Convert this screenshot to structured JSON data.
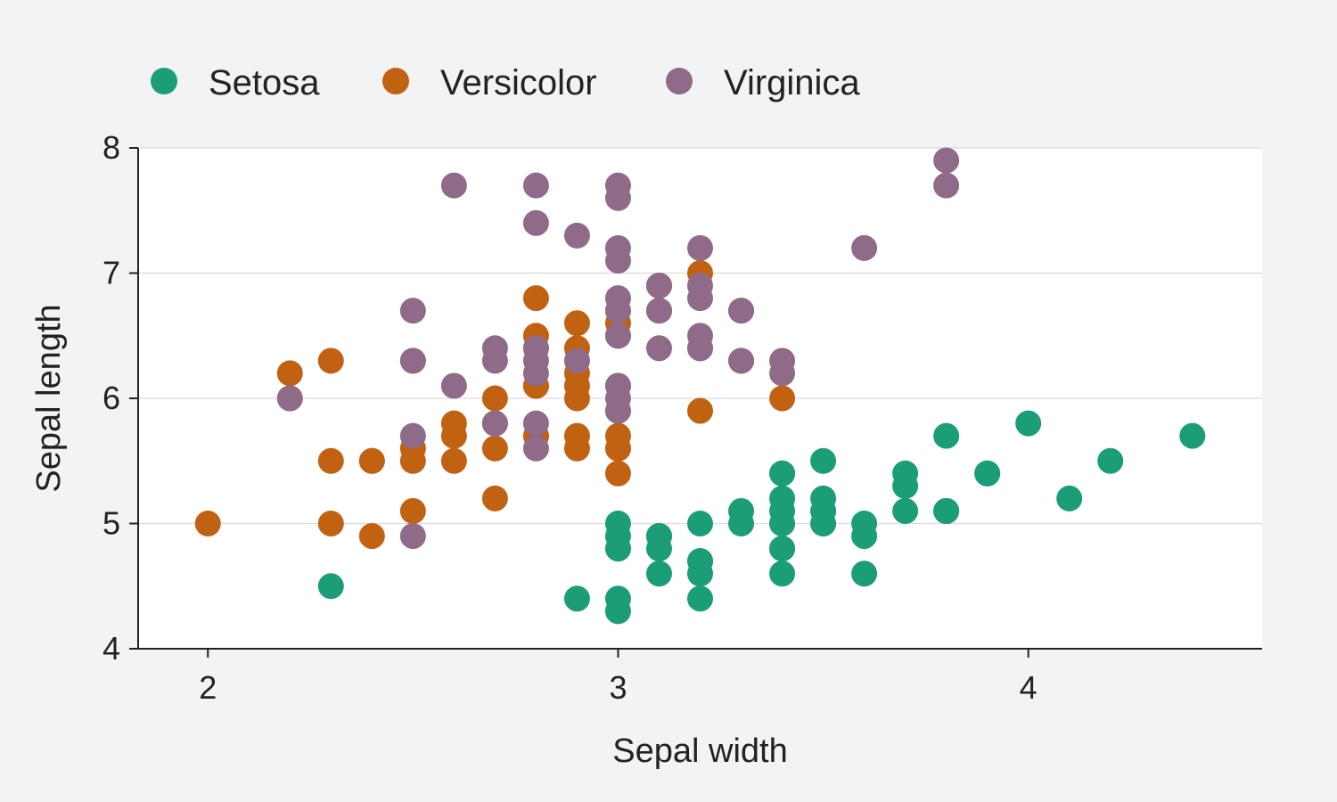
{
  "colors": {
    "background": "#f2f3f5",
    "plot_background": "#ffffff",
    "grid": "#d9d9d9",
    "axis": "#222222",
    "Setosa": "#1b9e77",
    "Versicolor": "#c16213",
    "Virginica": "#8f6b89"
  },
  "chart_data": {
    "type": "scatter",
    "xlabel": "Sepal width",
    "ylabel": "Sepal length",
    "xlim": [
      1.83,
      4.57
    ],
    "ylim": [
      4,
      8
    ],
    "xticks": [
      2,
      3,
      4
    ],
    "yticks": [
      4,
      5,
      6,
      7,
      8
    ],
    "grid": "horizontal",
    "legend": "top",
    "series": [
      {
        "name": "Setosa",
        "points": [
          [
            3.5,
            5.1
          ],
          [
            3.0,
            4.9
          ],
          [
            3.2,
            4.7
          ],
          [
            3.1,
            4.6
          ],
          [
            3.6,
            5.0
          ],
          [
            3.9,
            5.4
          ],
          [
            3.4,
            4.6
          ],
          [
            3.4,
            5.0
          ],
          [
            2.9,
            4.4
          ],
          [
            3.1,
            4.9
          ],
          [
            3.7,
            5.4
          ],
          [
            3.4,
            4.8
          ],
          [
            3.0,
            4.8
          ],
          [
            3.0,
            4.3
          ],
          [
            4.0,
            5.8
          ],
          [
            4.4,
            5.7
          ],
          [
            3.9,
            5.4
          ],
          [
            3.5,
            5.1
          ],
          [
            3.8,
            5.7
          ],
          [
            3.8,
            5.1
          ],
          [
            3.4,
            5.4
          ],
          [
            3.7,
            5.1
          ],
          [
            3.6,
            4.6
          ],
          [
            3.3,
            5.1
          ],
          [
            3.4,
            4.8
          ],
          [
            3.0,
            5.0
          ],
          [
            3.4,
            5.0
          ],
          [
            3.5,
            5.2
          ],
          [
            3.4,
            5.2
          ],
          [
            3.2,
            4.7
          ],
          [
            3.1,
            4.8
          ],
          [
            3.4,
            5.4
          ],
          [
            4.1,
            5.2
          ],
          [
            4.2,
            5.5
          ],
          [
            3.1,
            4.9
          ],
          [
            3.2,
            5.0
          ],
          [
            3.5,
            5.5
          ],
          [
            3.6,
            4.9
          ],
          [
            3.0,
            4.4
          ],
          [
            3.4,
            5.1
          ],
          [
            3.5,
            5.0
          ],
          [
            2.3,
            4.5
          ],
          [
            3.2,
            4.4
          ],
          [
            3.5,
            5.0
          ],
          [
            3.8,
            5.1
          ],
          [
            3.0,
            4.8
          ],
          [
            3.8,
            5.1
          ],
          [
            3.2,
            4.6
          ],
          [
            3.7,
            5.3
          ],
          [
            3.3,
            5.0
          ]
        ]
      },
      {
        "name": "Versicolor",
        "points": [
          [
            3.2,
            7.0
          ],
          [
            3.2,
            6.4
          ],
          [
            3.1,
            6.9
          ],
          [
            2.3,
            5.5
          ],
          [
            2.8,
            6.5
          ],
          [
            2.8,
            5.7
          ],
          [
            3.3,
            6.3
          ],
          [
            2.4,
            4.9
          ],
          [
            2.9,
            6.6
          ],
          [
            2.7,
            5.2
          ],
          [
            2.0,
            5.0
          ],
          [
            3.0,
            5.9
          ],
          [
            2.2,
            6.0
          ],
          [
            2.9,
            6.1
          ],
          [
            2.9,
            5.6
          ],
          [
            3.1,
            6.7
          ],
          [
            3.0,
            5.6
          ],
          [
            2.7,
            5.8
          ],
          [
            2.2,
            6.2
          ],
          [
            2.5,
            5.6
          ],
          [
            3.2,
            5.9
          ],
          [
            2.8,
            6.1
          ],
          [
            2.5,
            6.3
          ],
          [
            2.8,
            6.1
          ],
          [
            2.9,
            6.4
          ],
          [
            3.0,
            6.6
          ],
          [
            2.8,
            6.8
          ],
          [
            3.0,
            6.7
          ],
          [
            2.9,
            6.0
          ],
          [
            2.6,
            5.7
          ],
          [
            2.4,
            5.5
          ],
          [
            2.4,
            5.5
          ],
          [
            2.7,
            5.8
          ],
          [
            2.7,
            6.0
          ],
          [
            3.0,
            5.4
          ],
          [
            3.4,
            6.0
          ],
          [
            3.1,
            6.7
          ],
          [
            2.3,
            6.3
          ],
          [
            3.0,
            5.6
          ],
          [
            2.5,
            5.5
          ],
          [
            2.6,
            5.5
          ],
          [
            3.0,
            6.1
          ],
          [
            2.6,
            5.8
          ],
          [
            2.3,
            5.0
          ],
          [
            2.7,
            5.6
          ],
          [
            3.0,
            5.7
          ],
          [
            2.9,
            5.7
          ],
          [
            2.9,
            6.2
          ],
          [
            2.5,
            5.1
          ],
          [
            2.8,
            5.7
          ]
        ]
      },
      {
        "name": "Virginica",
        "points": [
          [
            3.3,
            6.3
          ],
          [
            2.7,
            5.8
          ],
          [
            3.0,
            7.1
          ],
          [
            2.9,
            6.3
          ],
          [
            3.0,
            6.5
          ],
          [
            3.0,
            7.6
          ],
          [
            2.5,
            4.9
          ],
          [
            2.9,
            7.3
          ],
          [
            2.5,
            6.7
          ],
          [
            3.6,
            7.2
          ],
          [
            3.2,
            6.5
          ],
          [
            2.7,
            6.4
          ],
          [
            3.0,
            6.8
          ],
          [
            2.5,
            5.7
          ],
          [
            2.8,
            5.8
          ],
          [
            3.2,
            6.4
          ],
          [
            3.0,
            6.5
          ],
          [
            3.8,
            7.7
          ],
          [
            2.6,
            7.7
          ],
          [
            2.2,
            6.0
          ],
          [
            3.2,
            6.9
          ],
          [
            2.8,
            5.6
          ],
          [
            2.8,
            7.7
          ],
          [
            2.7,
            6.3
          ],
          [
            3.3,
            6.7
          ],
          [
            3.2,
            7.2
          ],
          [
            2.8,
            6.2
          ],
          [
            3.0,
            6.1
          ],
          [
            2.8,
            6.4
          ],
          [
            3.0,
            7.2
          ],
          [
            2.8,
            7.4
          ],
          [
            3.8,
            7.9
          ],
          [
            2.8,
            6.4
          ],
          [
            2.8,
            6.3
          ],
          [
            2.6,
            6.1
          ],
          [
            3.0,
            7.7
          ],
          [
            3.4,
            6.3
          ],
          [
            3.1,
            6.4
          ],
          [
            3.0,
            6.0
          ],
          [
            3.1,
            6.9
          ],
          [
            3.1,
            6.7
          ],
          [
            3.1,
            6.9
          ],
          [
            2.7,
            5.8
          ],
          [
            3.2,
            6.8
          ],
          [
            3.3,
            6.7
          ],
          [
            3.0,
            6.7
          ],
          [
            2.5,
            6.3
          ],
          [
            3.0,
            6.5
          ],
          [
            3.4,
            6.2
          ],
          [
            3.0,
            5.9
          ]
        ]
      }
    ]
  }
}
